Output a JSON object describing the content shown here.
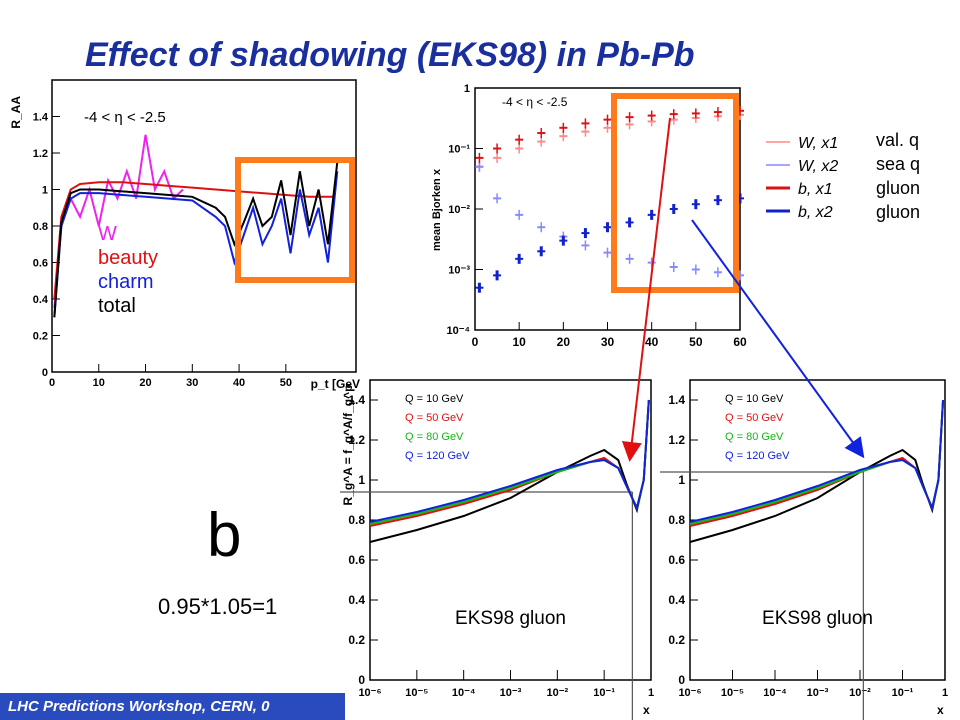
{
  "slide": {
    "title": "Effect of shadowing (EKS98) in Pb-Pb",
    "footer": "LHC Predictions Workshop, CERN, 0",
    "big_letter": "b",
    "formula": "0.95*1.05=1",
    "highlight_color": "#ff7a1a"
  },
  "chart_data": [
    {
      "type": "line",
      "ylabel": "R_AA",
      "xlabel": "p_t [GeV",
      "range_label": "-4 < η < -2.5",
      "xlim": [
        0,
        65
      ],
      "ylim": [
        0,
        1.6
      ],
      "x_ticks": [
        "0",
        "10",
        "20",
        "30",
        "40",
        "50"
      ],
      "y_ticks": [
        "0",
        "0.2",
        "0.4",
        "0.6",
        "0.8",
        "1",
        "1.2",
        "1.4"
      ],
      "legend": [
        {
          "name": "W",
          "color": "#ee22ee"
        },
        {
          "name": "beauty",
          "color": "#dd1111"
        },
        {
          "name": "charm",
          "color": "#1122dd"
        },
        {
          "name": "total",
          "color": "#000000"
        }
      ],
      "series": [
        {
          "name": "W",
          "color": "#ee22ee",
          "x": [
            0.5,
            2,
            4,
            6,
            8,
            10,
            12,
            14,
            16,
            18,
            20,
            22,
            24,
            26,
            28
          ],
          "y": [
            0.35,
            0.8,
            0.95,
            0.85,
            1.0,
            0.8,
            1.05,
            0.95,
            1.1,
            0.95,
            1.3,
            1.0,
            1.1,
            0.95,
            1.0
          ]
        },
        {
          "name": "beauty",
          "color": "#dd1111",
          "x": [
            0.5,
            2,
            4,
            6,
            10,
            15,
            20,
            25,
            30,
            35,
            40,
            45,
            50,
            55,
            60
          ],
          "y": [
            0.4,
            0.85,
            1.0,
            1.03,
            1.04,
            1.04,
            1.03,
            1.02,
            1.01,
            1.0,
            0.99,
            0.98,
            0.97,
            0.96,
            0.96
          ]
        },
        {
          "name": "charm",
          "color": "#1122dd",
          "x": [
            0.5,
            2,
            4,
            6,
            10,
            15,
            20,
            25,
            30,
            35,
            37,
            39,
            41,
            43,
            45,
            47,
            49,
            51,
            53,
            55,
            57,
            59,
            61
          ],
          "y": [
            0.3,
            0.8,
            0.95,
            0.98,
            0.98,
            0.97,
            0.96,
            0.95,
            0.94,
            0.85,
            0.8,
            0.6,
            0.75,
            0.9,
            0.7,
            0.8,
            0.95,
            0.65,
            1.0,
            0.75,
            0.9,
            0.6,
            1.1
          ]
        },
        {
          "name": "total",
          "color": "#000000",
          "x": [
            0.5,
            2,
            4,
            6,
            10,
            15,
            20,
            25,
            30,
            35,
            37,
            39,
            41,
            43,
            45,
            47,
            49,
            51,
            53,
            55,
            57,
            59,
            61
          ],
          "y": [
            0.3,
            0.82,
            0.98,
            1.0,
            1.0,
            0.99,
            0.98,
            0.97,
            0.96,
            0.9,
            0.85,
            0.7,
            0.82,
            0.95,
            0.8,
            0.85,
            1.05,
            0.75,
            1.1,
            0.8,
            1.0,
            0.7,
            1.15
          ]
        }
      ]
    },
    {
      "type": "scatter",
      "ylabel": "mean Bjorken x",
      "range_label": "-4 < η < -2.5",
      "xlim": [
        0,
        60
      ],
      "ylim_log": [
        0.0001,
        1
      ],
      "x_ticks": [
        "0",
        "10",
        "20",
        "30",
        "40",
        "50",
        "60"
      ],
      "y_ticks": [
        "10⁻⁴",
        "10⁻³",
        "10⁻²",
        "10⁻¹",
        "1"
      ],
      "legend": [
        {
          "label": "W, x1",
          "color": "#ff8888",
          "note": "val. q"
        },
        {
          "label": "W, x2",
          "color": "#8888ff",
          "note": "sea q"
        },
        {
          "label": "b, x1",
          "color": "#dd1111",
          "note": "gluon"
        },
        {
          "label": "b, x2",
          "color": "#1122cc",
          "note": "gluon"
        }
      ],
      "series": [
        {
          "name": "W, x1",
          "color": "#ff8888",
          "x": [
            1,
            5,
            10,
            15,
            20,
            25,
            30,
            35,
            40,
            45,
            50,
            55,
            60
          ],
          "y": [
            0.05,
            0.07,
            0.1,
            0.13,
            0.16,
            0.19,
            0.22,
            0.25,
            0.28,
            0.3,
            0.32,
            0.34,
            0.36
          ]
        },
        {
          "name": "W, x2",
          "color": "#8888ff",
          "x": [
            1,
            5,
            10,
            15,
            20,
            25,
            30,
            35,
            40,
            45,
            50,
            55,
            60
          ],
          "y": [
            0.05,
            0.015,
            0.008,
            0.005,
            0.0035,
            0.0025,
            0.0019,
            0.0015,
            0.0013,
            0.0011,
            0.001,
            0.0009,
            0.0008
          ]
        },
        {
          "name": "b, x1",
          "color": "#dd1111",
          "x": [
            1,
            5,
            10,
            15,
            20,
            25,
            30,
            35,
            40,
            45,
            50,
            55,
            60
          ],
          "y": [
            0.07,
            0.1,
            0.14,
            0.18,
            0.22,
            0.26,
            0.3,
            0.33,
            0.35,
            0.37,
            0.38,
            0.4,
            0.42
          ]
        },
        {
          "name": "b, x2",
          "color": "#1122cc",
          "x": [
            1,
            5,
            10,
            15,
            20,
            25,
            30,
            35,
            40,
            45,
            50,
            55,
            60
          ],
          "y": [
            0.0005,
            0.0008,
            0.0015,
            0.002,
            0.003,
            0.004,
            0.005,
            0.006,
            0.008,
            0.01,
            0.012,
            0.014,
            0.015
          ]
        }
      ]
    },
    {
      "type": "line",
      "ylabel": "R_g^A = f_g^A/f_g^p",
      "xlabel": "x",
      "caption": "EKS98 gluon",
      "xlim_log": [
        1e-06,
        1
      ],
      "ylim": [
        0,
        1.5
      ],
      "x_ticks": [
        "10⁻⁶",
        "10⁻⁵",
        "10⁻⁴",
        "10⁻³",
        "10⁻²",
        "10⁻¹",
        "1"
      ],
      "y_ticks": [
        "0",
        "0.2",
        "0.4",
        "0.6",
        "0.8",
        "1",
        "1.2",
        "1.4"
      ],
      "series": [
        {
          "name": "Q = 10 GeV",
          "color": "#000000",
          "x": [
            1e-06,
            1e-05,
            0.0001,
            0.001,
            0.01,
            0.05,
            0.1,
            0.2,
            0.3,
            0.5,
            0.7,
            0.9
          ],
          "y": [
            0.69,
            0.75,
            0.82,
            0.91,
            1.04,
            1.12,
            1.15,
            1.1,
            0.98,
            0.85,
            1.0,
            1.4
          ]
        },
        {
          "name": "Q = 50 GeV",
          "color": "#dd1111",
          "x": [
            1e-06,
            1e-05,
            0.0001,
            0.001,
            0.01,
            0.05,
            0.1,
            0.2,
            0.3,
            0.5,
            0.7,
            0.9
          ],
          "y": [
            0.77,
            0.82,
            0.88,
            0.95,
            1.04,
            1.09,
            1.11,
            1.06,
            0.97,
            0.86,
            1.0,
            1.4
          ]
        },
        {
          "name": "Q = 80 GeV",
          "color": "#11bb11",
          "x": [
            1e-06,
            1e-05,
            0.0001,
            0.001,
            0.01,
            0.05,
            0.1,
            0.2,
            0.3,
            0.5,
            0.7,
            0.9
          ],
          "y": [
            0.78,
            0.83,
            0.89,
            0.96,
            1.04,
            1.09,
            1.1,
            1.06,
            0.97,
            0.86,
            1.0,
            1.4
          ]
        },
        {
          "name": "Q = 120 GeV",
          "color": "#1122dd",
          "x": [
            1e-06,
            1e-05,
            0.0001,
            0.001,
            0.01,
            0.05,
            0.1,
            0.2,
            0.3,
            0.5,
            0.7,
            0.9
          ],
          "y": [
            0.79,
            0.84,
            0.9,
            0.97,
            1.05,
            1.09,
            1.1,
            1.06,
            0.97,
            0.86,
            1.0,
            1.4
          ]
        }
      ]
    }
  ]
}
